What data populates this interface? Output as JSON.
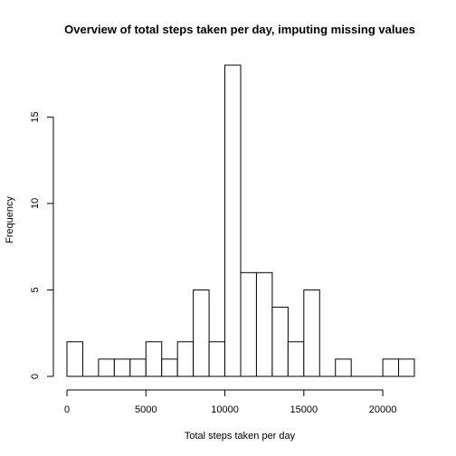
{
  "chart_data": {
    "type": "bar",
    "title": "Overview of total steps taken per day, imputing missing values",
    "xlabel": "Total steps taken per day",
    "ylabel": "Frequency",
    "bin_width": 1000,
    "bins": [
      {
        "x0": 0,
        "x1": 1000,
        "count": 2
      },
      {
        "x0": 1000,
        "x1": 2000,
        "count": 0
      },
      {
        "x0": 2000,
        "x1": 3000,
        "count": 1
      },
      {
        "x0": 3000,
        "x1": 4000,
        "count": 1
      },
      {
        "x0": 4000,
        "x1": 5000,
        "count": 1
      },
      {
        "x0": 5000,
        "x1": 6000,
        "count": 2
      },
      {
        "x0": 6000,
        "x1": 7000,
        "count": 1
      },
      {
        "x0": 7000,
        "x1": 8000,
        "count": 2
      },
      {
        "x0": 8000,
        "x1": 9000,
        "count": 5
      },
      {
        "x0": 9000,
        "x1": 10000,
        "count": 2
      },
      {
        "x0": 10000,
        "x1": 11000,
        "count": 18
      },
      {
        "x0": 11000,
        "x1": 12000,
        "count": 6
      },
      {
        "x0": 12000,
        "x1": 13000,
        "count": 6
      },
      {
        "x0": 13000,
        "x1": 14000,
        "count": 4
      },
      {
        "x0": 14000,
        "x1": 15000,
        "count": 2
      },
      {
        "x0": 15000,
        "x1": 16000,
        "count": 5
      },
      {
        "x0": 16000,
        "x1": 17000,
        "count": 0
      },
      {
        "x0": 17000,
        "x1": 18000,
        "count": 1
      },
      {
        "x0": 18000,
        "x1": 19000,
        "count": 0
      },
      {
        "x0": 19000,
        "x1": 20000,
        "count": 0
      },
      {
        "x0": 20000,
        "x1": 21000,
        "count": 1
      },
      {
        "x0": 21000,
        "x1": 22000,
        "count": 1
      }
    ],
    "xlim": [
      0,
      22000
    ],
    "ylim": [
      0,
      18
    ],
    "x_ticks": [
      0,
      5000,
      10000,
      15000,
      20000
    ],
    "y_ticks": [
      0,
      5,
      10,
      15
    ],
    "grid": false,
    "bar_fill": "#ffffff",
    "bar_stroke": "#000000"
  }
}
